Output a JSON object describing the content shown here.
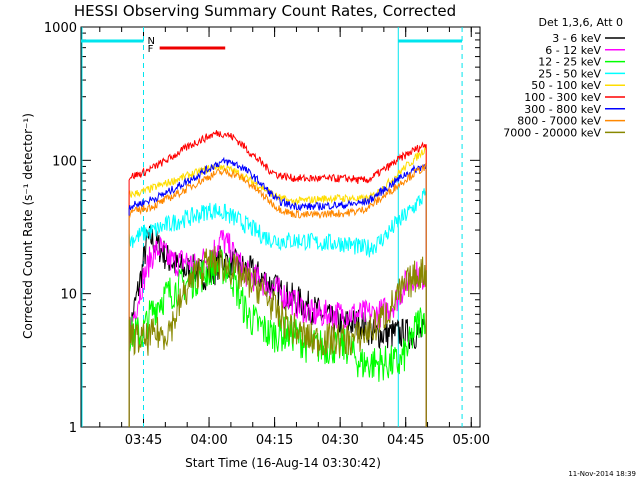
{
  "chart_data": {
    "type": "line",
    "title": "HESSI Observing Summary Count Rates, Corrected",
    "xlabel": "Start Time (16-Aug-14 03:30:42)",
    "ylabel": "Corrected Count Rate (s⁻¹ detector⁻¹)",
    "yscale": "log",
    "ylim": [
      1,
      1000
    ],
    "xlim_minutes_after_start": [
      0,
      91.3
    ],
    "y_ticks": [
      "1",
      "10",
      "100",
      "1000"
    ],
    "x_ticks": [
      {
        "label": "03:45",
        "t": 14.3
      },
      {
        "label": "04:00",
        "t": 29.3
      },
      {
        "label": "04:15",
        "t": 44.3
      },
      {
        "label": "04:30",
        "t": 59.3
      },
      {
        "label": "04:45",
        "t": 74.3
      },
      {
        "label": "05:00",
        "t": 89.3
      }
    ],
    "legend_title": "Det 1,3,6, Att 0",
    "legend_position": "top-right",
    "series": [
      {
        "name": "3 - 6 keV",
        "color": "#000000",
        "x": [
          11,
          14,
          15,
          16,
          18,
          20,
          22,
          24,
          26,
          28,
          30,
          32,
          34,
          36,
          38,
          40,
          43,
          46,
          49,
          52,
          55,
          58,
          61,
          64,
          67,
          70,
          73,
          75,
          77,
          79
        ],
        "y": [
          5,
          15,
          24,
          26,
          22,
          18,
          16,
          15,
          15,
          14,
          14,
          18,
          17,
          16,
          15,
          14,
          12,
          10,
          9,
          8,
          7,
          6,
          6,
          6,
          5,
          5,
          5,
          5,
          5,
          5
        ]
      },
      {
        "name": "6 - 12 keV",
        "color": "#ff00ff",
        "x": [
          11,
          14,
          16,
          18,
          20,
          22,
          24,
          26,
          28,
          30,
          32,
          34,
          36,
          38,
          40,
          42,
          44,
          46,
          48,
          50,
          53,
          56,
          59,
          62,
          65,
          68,
          71,
          73,
          75,
          77,
          79
        ],
        "y": [
          5,
          12,
          19,
          22,
          18,
          17,
          18,
          16,
          18,
          20,
          26,
          22,
          17,
          14,
          13,
          12,
          11,
          10,
          9,
          8,
          7,
          7,
          7,
          7,
          7,
          7,
          8,
          10,
          13,
          14,
          13
        ]
      },
      {
        "name": "12 - 25 keV",
        "color": "#00ff00",
        "x": [
          11,
          14,
          16,
          18,
          20,
          22,
          24,
          26,
          28,
          30,
          32,
          34,
          36,
          38,
          40,
          43,
          46,
          49,
          52,
          55,
          58,
          61,
          64,
          67,
          70,
          73,
          75,
          77,
          79
        ],
        "y": [
          5,
          5,
          7,
          9,
          10,
          11,
          12,
          13,
          14,
          16,
          16,
          15,
          10,
          7,
          6,
          5,
          5,
          5,
          4,
          4,
          4,
          4,
          3,
          3,
          3,
          3,
          4,
          6,
          7
        ]
      },
      {
        "name": "25 - 50 keV",
        "color": "#00ffff",
        "x": [
          11,
          14,
          17,
          20,
          23,
          26,
          29,
          31,
          33,
          35,
          37,
          39,
          41,
          43,
          45,
          48,
          51,
          54,
          57,
          60,
          62,
          64,
          66,
          68,
          70,
          72,
          74,
          76,
          78,
          79
        ],
        "y": [
          25,
          28,
          30,
          33,
          36,
          38,
          42,
          42,
          40,
          37,
          34,
          31,
          28,
          26,
          25,
          25,
          25,
          24,
          24,
          24,
          23,
          22,
          22,
          24,
          28,
          33,
          38,
          44,
          52,
          56
        ]
      },
      {
        "name": "50 - 100 keV",
        "color": "#ffdd00",
        "x": [
          11,
          14,
          17,
          20,
          23,
          26,
          29,
          31,
          33,
          35,
          37,
          39,
          41,
          43,
          45,
          48,
          51,
          54,
          57,
          60,
          62,
          64,
          66,
          68,
          70,
          72,
          74,
          76,
          78,
          79
        ],
        "y": [
          55,
          58,
          63,
          68,
          74,
          80,
          86,
          90,
          88,
          83,
          76,
          70,
          64,
          58,
          53,
          49,
          50,
          51,
          52,
          52,
          52,
          51,
          52,
          58,
          66,
          76,
          88,
          100,
          115,
          125
        ]
      },
      {
        "name": "100 - 300 keV",
        "color": "#ff0000",
        "x": [
          11,
          14,
          17,
          20,
          23,
          26,
          29,
          31,
          33,
          35,
          37,
          39,
          41,
          43,
          45,
          48,
          51,
          54,
          57,
          60,
          62,
          64,
          66,
          68,
          70,
          72,
          74,
          76,
          78,
          79
        ],
        "y": [
          75,
          80,
          90,
          102,
          118,
          135,
          150,
          160,
          158,
          148,
          130,
          112,
          98,
          85,
          78,
          74,
          73,
          73,
          73,
          73,
          73,
          70,
          72,
          80,
          88,
          98,
          108,
          118,
          128,
          132
        ]
      },
      {
        "name": "300 - 800 keV",
        "color": "#0000ff",
        "x": [
          11,
          14,
          17,
          20,
          23,
          26,
          29,
          31,
          33,
          35,
          37,
          39,
          41,
          43,
          45,
          48,
          51,
          54,
          57,
          60,
          62,
          64,
          66,
          68,
          70,
          72,
          74,
          76,
          78,
          79
        ],
        "y": [
          45,
          48,
          52,
          58,
          66,
          75,
          86,
          94,
          98,
          95,
          88,
          78,
          68,
          58,
          50,
          46,
          45,
          45,
          46,
          46,
          47,
          48,
          50,
          56,
          62,
          70,
          78,
          84,
          90,
          92
        ]
      },
      {
        "name": "800 - 7000 keV",
        "color": "#ff8800",
        "x": [
          11,
          14,
          17,
          20,
          23,
          26,
          29,
          31,
          33,
          35,
          37,
          39,
          41,
          43,
          45,
          48,
          51,
          54,
          57,
          60,
          62,
          64,
          66,
          68,
          70,
          72,
          74,
          76,
          78,
          79
        ],
        "y": [
          40,
          43,
          46,
          52,
          58,
          66,
          75,
          80,
          82,
          79,
          73,
          65,
          57,
          50,
          44,
          40,
          39,
          39,
          40,
          40,
          41,
          42,
          45,
          50,
          56,
          63,
          71,
          79,
          86,
          88
        ]
      },
      {
        "name": "7000 - 20000 keV",
        "color": "#888800",
        "x": [
          11,
          13,
          15,
          17,
          19,
          21,
          23,
          25,
          27,
          29,
          31,
          33,
          35,
          37,
          39,
          41,
          43,
          45,
          47,
          50,
          53,
          56,
          59,
          62,
          65,
          68,
          71,
          73,
          75,
          77,
          79
        ],
        "y": [
          5,
          4.5,
          4.5,
          5,
          5,
          6,
          9,
          12,
          15,
          17,
          17,
          16,
          15,
          13,
          12,
          11,
          9,
          7,
          6,
          5,
          4.5,
          4.5,
          4.5,
          4.5,
          5,
          6,
          8,
          10,
          12,
          14,
          15
        ]
      }
    ],
    "annotations": {
      "night_bars": [
        {
          "label": "N",
          "t_start": 0,
          "t_end": 14.3,
          "t_dashed": 14.3
        },
        {
          "label": "",
          "t_start": 72.6,
          "t_end": 87.2,
          "t_dashed": 87.2
        }
      ],
      "flare_bar": {
        "label": "F",
        "t_start": 18,
        "t_end": 33
      }
    }
  },
  "footer": {
    "timestamp": "11-Nov-2014 18:39"
  }
}
